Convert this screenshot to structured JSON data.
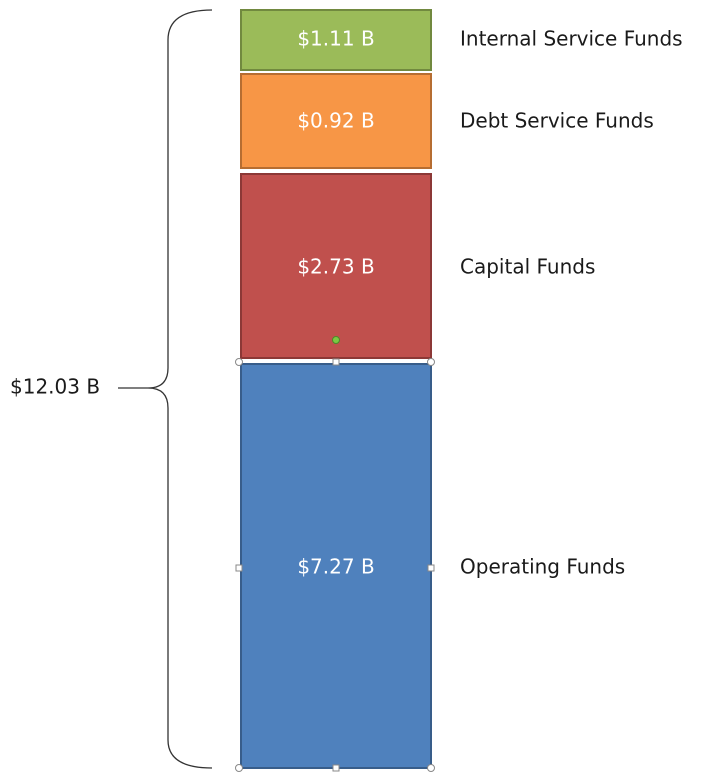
{
  "blocks": [
    {
      "value": "$1.11 B",
      "label": "Internal Service Funds"
    },
    {
      "value": "$0.92 B",
      "label": "Debt Service Funds"
    },
    {
      "value": "$2.73 B",
      "label": "Capital Funds"
    },
    {
      "value": "$7.27 B",
      "label": "Operating Funds"
    }
  ],
  "total": "$12.03 B"
}
